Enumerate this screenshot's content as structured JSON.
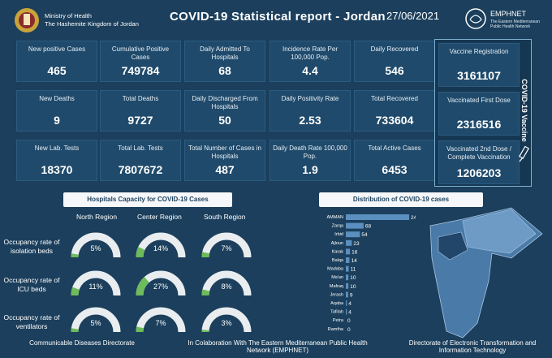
{
  "header": {
    "ministry_line1": "Ministry of Health",
    "ministry_line2": "The Hashemite Kingdom of Jordan",
    "title": "COVID-19 Statistical report - Jordan",
    "date": "27/06/2021",
    "partner_name": "EMPHNET",
    "partner_sub1": "The Eastern Mediterranean",
    "partner_sub2": "Public Health Network"
  },
  "stats": [
    {
      "label": "New positive Cases",
      "value": "465"
    },
    {
      "label": "Cumulative  Positive Cases",
      "value": "749784"
    },
    {
      "label": "Daily Admitted To Hospitals",
      "value": "68"
    },
    {
      "label": "Incidence Rate Per 100,000 Pop.",
      "value": "4.4"
    },
    {
      "label": "Daily Recovered",
      "value": "546"
    },
    {
      "label": "New Deaths",
      "value": "9"
    },
    {
      "label": "Total Deaths",
      "value": "9727"
    },
    {
      "label": "Daily Discharged From Hospitals",
      "value": "50"
    },
    {
      "label": "Daily Positivity Rate",
      "value": "2.53"
    },
    {
      "label": "Total Recovered",
      "value": "733604"
    },
    {
      "label": "New Lab. Tests",
      "value": "18370"
    },
    {
      "label": "Total Lab. Tests",
      "value": "7807672"
    },
    {
      "label": "Total Number of Cases in Hospitals",
      "value": "487"
    },
    {
      "label": "Daily Death Rate 100,000 Pop.",
      "value": "1.9"
    },
    {
      "label": "Total Active Cases",
      "value": "6453"
    }
  ],
  "vaccine": {
    "side_label": "COVID-19 Vaccine",
    "cards": [
      {
        "label": "Vaccine Registration",
        "value": "3161107"
      },
      {
        "label": "Vaccinated First Dose",
        "value": "2316516"
      },
      {
        "label": "Vaccinated 2nd Dose / Complete Vaccination",
        "value": "1206203"
      }
    ]
  },
  "hospitals": {
    "title": "Hospitals Capacity for COVID-19 Cases",
    "regions": [
      "North Region",
      "Center Region",
      "South Region"
    ],
    "rows": [
      {
        "label": "Occupancy rate of isolation beds",
        "values": [
          5,
          14,
          7
        ]
      },
      {
        "label": "Occupancy rate of ICU beds",
        "values": [
          11,
          27,
          8
        ]
      },
      {
        "label": "Occupancy rate of ventilators",
        "values": [
          5,
          7,
          3
        ]
      }
    ]
  },
  "distribution": {
    "title": "Distribution of COVID-19 cases"
  },
  "chart_data": {
    "type": "bar",
    "title": "Distribution of COVID-19 cases",
    "categories": [
      "AMMAN",
      "Zarqa",
      "Irbid",
      "Ajloun",
      "Karak",
      "Balqa",
      "Madaba",
      "Ma'an",
      "Mafraq",
      "Jerash",
      "Aqaba",
      "Tafilah",
      "Petra",
      "Ramtha"
    ],
    "values": [
      242,
      68,
      54,
      23,
      16,
      14,
      11,
      10,
      10,
      9,
      4,
      4,
      0,
      0
    ],
    "xlim": [
      0,
      242
    ]
  },
  "footer": {
    "left": "Communicable Diseases Directorate",
    "center": "In Colaboration With The Eastern Mediterranean Public Health Network (EMPHNET)",
    "right": "Directorate of Electronic Transformation and  Information Technology"
  },
  "colors": {
    "background": "#1b3f5c",
    "card": "#1f4a6b",
    "gauge_fill": "#6dbb5a",
    "gauge_track": "#e9edf0",
    "bar": "#5b8fbf"
  }
}
